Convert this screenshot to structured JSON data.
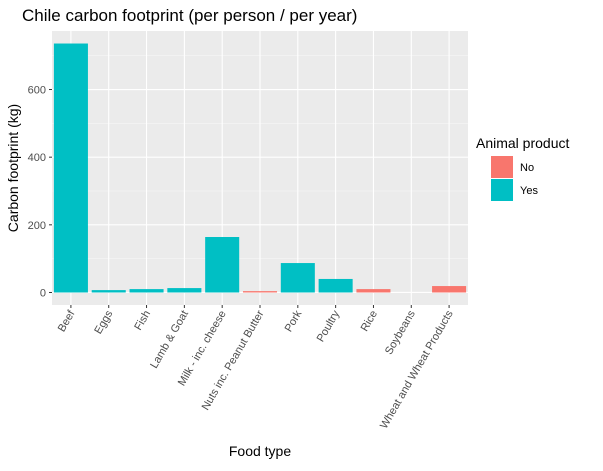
{
  "chart_data": {
    "type": "bar",
    "title": "Chile carbon footprint (per person / per year)",
    "xlabel": "Food type",
    "ylabel": "Carbon footprint (kg)",
    "categories": [
      "Beef",
      "Eggs",
      "Fish",
      "Lamb & Goat",
      "Milk - inc. cheese",
      "Nuts inc. Peanut Butter",
      "Pork",
      "Poultry",
      "Rice",
      "Soybeans",
      "Wheat and Wheat Products"
    ],
    "values": [
      736,
      7,
      10,
      13,
      164,
      4,
      87,
      40,
      10,
      0,
      19
    ],
    "animal_product": [
      "Yes",
      "Yes",
      "Yes",
      "Yes",
      "Yes",
      "No",
      "Yes",
      "Yes",
      "No",
      "No",
      "No"
    ],
    "ylim": [
      -37,
      773
    ],
    "yticks": [
      0,
      200,
      400,
      600
    ],
    "legend": {
      "title": "Animal product",
      "position": "right",
      "entries": [
        {
          "label": "No",
          "color": "#F8766D"
        },
        {
          "label": "Yes",
          "color": "#00BFC4"
        }
      ]
    },
    "grid": true,
    "background": "#EBEBEB"
  }
}
